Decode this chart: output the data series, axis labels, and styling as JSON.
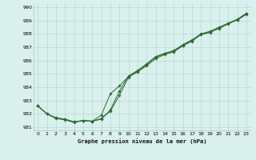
{
  "title": "Graphe pression niveau de la mer (hPa)",
  "xlim": [
    -0.5,
    23.5
  ],
  "ylim": [
    980.7,
    990.3
  ],
  "yticks": [
    981,
    982,
    983,
    984,
    985,
    986,
    987,
    988,
    989,
    990
  ],
  "xticks": [
    0,
    1,
    2,
    3,
    4,
    5,
    6,
    7,
    8,
    9,
    10,
    11,
    12,
    13,
    14,
    15,
    16,
    17,
    18,
    19,
    20,
    21,
    22,
    23
  ],
  "bg_color": "#d9f0ed",
  "grid_major_color": "#b8d8d4",
  "grid_minor_color": "#cce8e4",
  "line_color": "#2d6b2d",
  "series1": {
    "x": [
      0,
      1,
      2,
      3,
      4,
      5,
      6,
      7,
      8,
      9,
      10,
      11,
      12,
      13,
      14,
      15,
      16,
      17,
      18,
      19,
      20,
      21,
      22,
      23
    ],
    "y": [
      982.6,
      982.0,
      981.7,
      981.6,
      981.4,
      981.5,
      981.45,
      981.6,
      982.3,
      983.7,
      984.85,
      985.25,
      985.75,
      986.3,
      986.55,
      986.75,
      987.2,
      987.55,
      988.0,
      988.2,
      988.5,
      988.8,
      989.1,
      989.55
    ]
  },
  "series2": {
    "x": [
      0,
      1,
      2,
      3,
      4,
      5,
      6,
      7,
      8,
      9,
      10,
      11,
      12,
      13,
      14,
      15,
      16,
      17,
      18,
      19,
      20,
      21,
      22,
      23
    ],
    "y": [
      982.6,
      982.0,
      981.65,
      981.55,
      981.35,
      981.5,
      981.45,
      981.65,
      982.2,
      983.4,
      984.75,
      985.15,
      985.6,
      986.15,
      986.45,
      986.65,
      987.1,
      987.45,
      987.95,
      988.15,
      988.4,
      988.75,
      989.05,
      989.45
    ]
  },
  "series3": {
    "x": [
      0,
      1,
      2,
      3,
      4,
      5,
      6,
      7,
      8,
      9,
      10,
      11,
      12,
      13,
      14,
      15,
      16,
      17,
      18,
      19,
      20,
      21,
      22,
      23
    ],
    "y": [
      982.6,
      982.0,
      981.7,
      981.6,
      981.4,
      981.5,
      981.45,
      981.9,
      983.5,
      984.1,
      984.8,
      985.2,
      985.7,
      986.25,
      986.5,
      986.7,
      987.15,
      987.5,
      987.95,
      988.1,
      988.45,
      988.78,
      989.05,
      989.5
    ]
  }
}
